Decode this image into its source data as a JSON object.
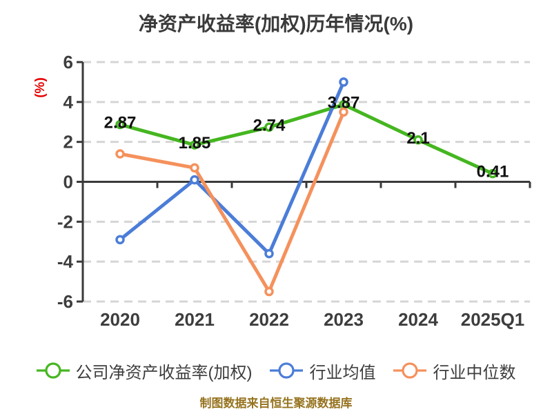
{
  "title": "净资产收益率(加权)历年情况(%)",
  "y_unit_label": "(%)",
  "footer": "制图数据来自恒生聚源数据库",
  "colors": {
    "company": "#45b620",
    "industry_avg": "#4b7dd8",
    "industry_median": "#f5915c",
    "axis": "#3a3a3a",
    "grid": "#d5d5d5",
    "tick_label": "#3d3d3d",
    "value_label": "#111111",
    "unit_label": "#e60000",
    "footer": "#96731f",
    "marker_fill": "#ffffff"
  },
  "chart_data": {
    "type": "line",
    "title": "净资产收益率(加权)历年情况(%)",
    "categories": [
      "2020",
      "2021",
      "2022",
      "2023",
      "2024",
      "2025Q1"
    ],
    "series": [
      {
        "name": "公司净资产收益率(加权)",
        "color_key": "company",
        "values": [
          2.87,
          1.85,
          2.74,
          3.87,
          2.1,
          0.41
        ],
        "show_labels": true
      },
      {
        "name": "行业均值",
        "color_key": "industry_avg",
        "values": [
          -2.9,
          0.1,
          -3.6,
          5,
          null,
          null
        ],
        "show_labels": false
      },
      {
        "name": "行业中位数",
        "color_key": "industry_median",
        "values": [
          1.4,
          0.7,
          -5.5,
          3.5,
          null,
          null
        ],
        "show_labels": false
      }
    ],
    "y_ticks": [
      6,
      4,
      2,
      0,
      -2,
      -4,
      -6
    ],
    "ylim": [
      -6,
      6
    ],
    "ylabel": "(%)",
    "grid": "dashed-horizontal",
    "legend_position": "bottom"
  }
}
